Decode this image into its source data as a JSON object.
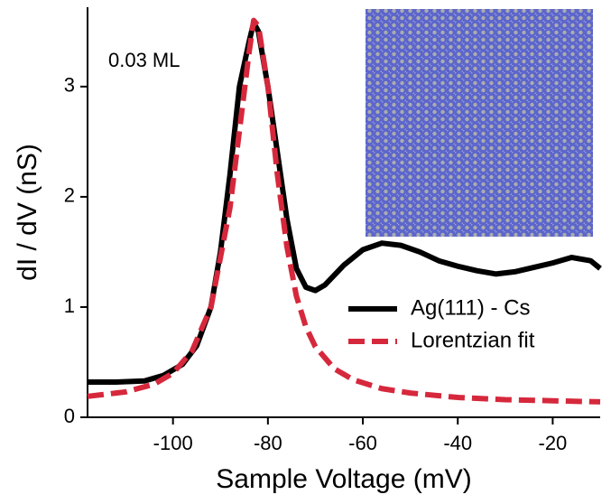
{
  "chart_data": {
    "type": "line",
    "x_label": "Sample Voltage (mV)",
    "y_label": "dI / dV (nS)",
    "annotation": "0.03 ML",
    "xlim": [
      -118,
      -10
    ],
    "ylim": [
      0,
      3.72
    ],
    "xticks": [
      -100,
      -80,
      -60,
      -40,
      -20
    ],
    "yticks": [
      0,
      1,
      2,
      3
    ],
    "legend": "lower right",
    "series": [
      {
        "name": "Ag(111) - Cs",
        "color": "#000000",
        "dash": false,
        "x": [
          -118,
          -112,
          -106,
          -102,
          -98,
          -95,
          -92,
          -90,
          -88,
          -86,
          -84,
          -83,
          -82,
          -80,
          -78,
          -76,
          -74,
          -72,
          -70,
          -68,
          -64,
          -60,
          -56,
          -52,
          -48,
          -44,
          -40,
          -36,
          -32,
          -28,
          -24,
          -20,
          -16,
          -12,
          -10
        ],
        "values": [
          0.32,
          0.32,
          0.33,
          0.38,
          0.48,
          0.65,
          1.0,
          1.5,
          2.2,
          3.0,
          3.4,
          3.58,
          3.5,
          3.0,
          2.4,
          1.8,
          1.35,
          1.18,
          1.15,
          1.2,
          1.38,
          1.52,
          1.58,
          1.56,
          1.5,
          1.42,
          1.37,
          1.33,
          1.3,
          1.32,
          1.36,
          1.4,
          1.45,
          1.42,
          1.35
        ]
      },
      {
        "name": "Lorentzian fit",
        "color": "#d6283c",
        "dash": true,
        "x": [
          -118,
          -110,
          -104,
          -100,
          -96,
          -92,
          -88,
          -86,
          -84,
          -83,
          -82,
          -80,
          -78,
          -76,
          -74,
          -72,
          -70,
          -66,
          -62,
          -56,
          -50,
          -40,
          -30,
          -20,
          -10
        ],
        "values": [
          0.19,
          0.23,
          0.3,
          0.4,
          0.6,
          1.0,
          1.9,
          2.6,
          3.3,
          3.6,
          3.55,
          3.0,
          2.2,
          1.55,
          1.1,
          0.82,
          0.64,
          0.44,
          0.34,
          0.26,
          0.22,
          0.18,
          0.16,
          0.15,
          0.14
        ]
      }
    ]
  }
}
